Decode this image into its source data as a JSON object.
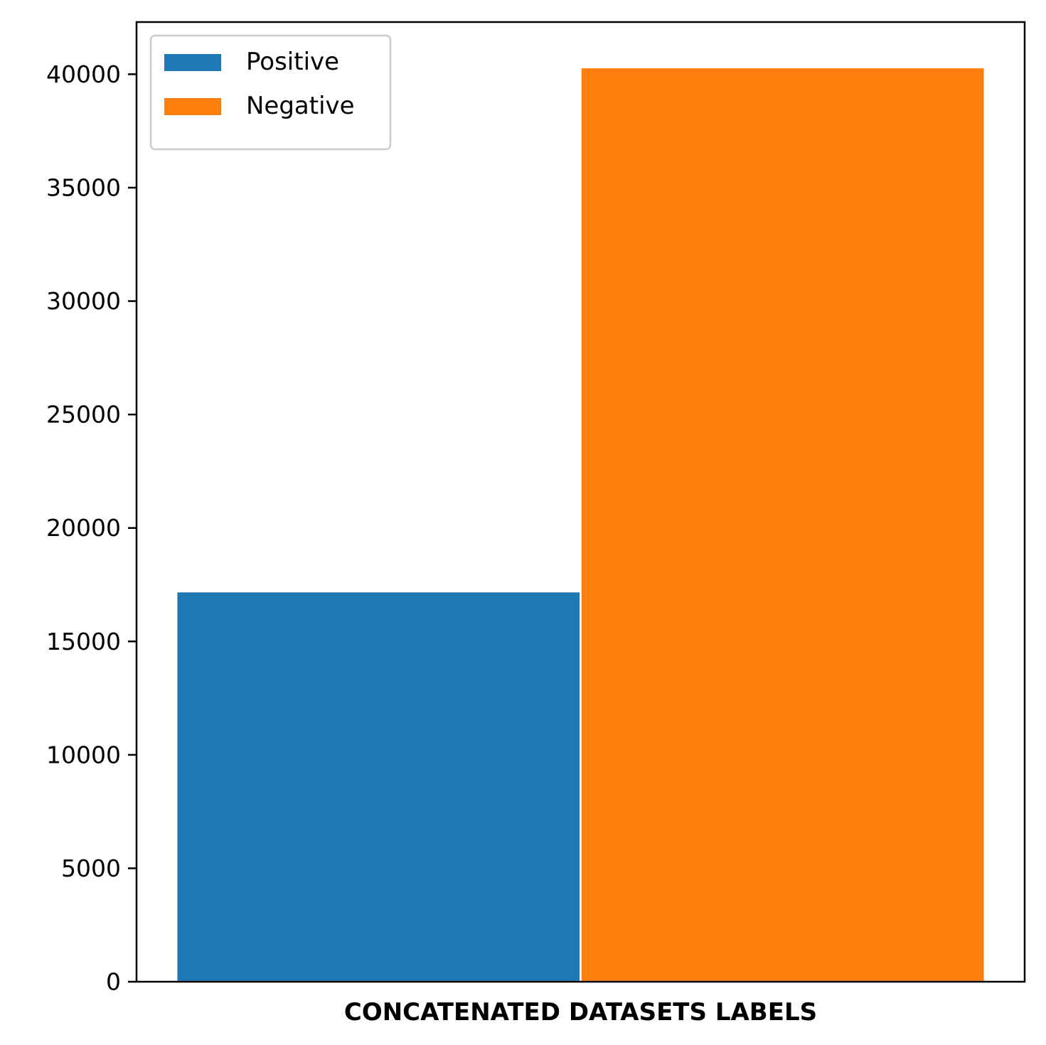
{
  "chart_data": {
    "type": "bar",
    "title": "",
    "xlabel": "CONCATENATED DATASETS LABELS",
    "ylabel": "",
    "ylim": [
      0,
      42300
    ],
    "yticks": [
      0,
      5000,
      10000,
      15000,
      20000,
      25000,
      30000,
      35000,
      40000
    ],
    "grid": false,
    "legend_position": "upper-left",
    "series": [
      {
        "name": "Positive",
        "value": 17200,
        "color": "#1f77b4"
      },
      {
        "name": "Negative",
        "value": 40300,
        "color": "#ff7f0e"
      }
    ]
  }
}
